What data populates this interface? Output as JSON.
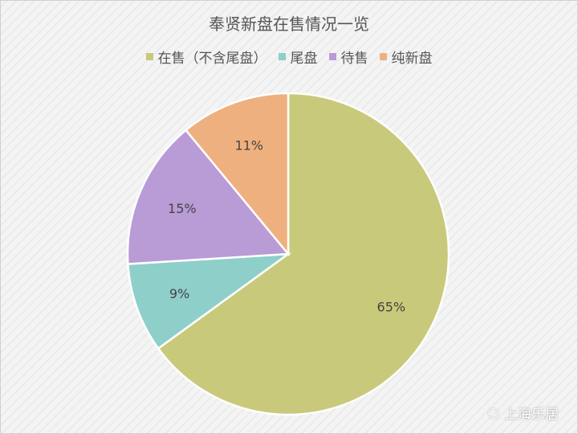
{
  "chart_data": {
    "type": "pie",
    "title": "奉贤新盘在售情况一览",
    "categories": [
      "在售（不含尾盘）",
      "尾盘",
      "待售",
      "纯新盘"
    ],
    "values": [
      65,
      9,
      15,
      11
    ],
    "labels": [
      "65%",
      "9%",
      "15%",
      "11%"
    ],
    "colors": [
      "#c9c97b",
      "#8ecfca",
      "#b99bd6",
      "#efb07f"
    ],
    "legend_position": "top",
    "start": "top, clockwise"
  },
  "watermark": "上海乐居"
}
